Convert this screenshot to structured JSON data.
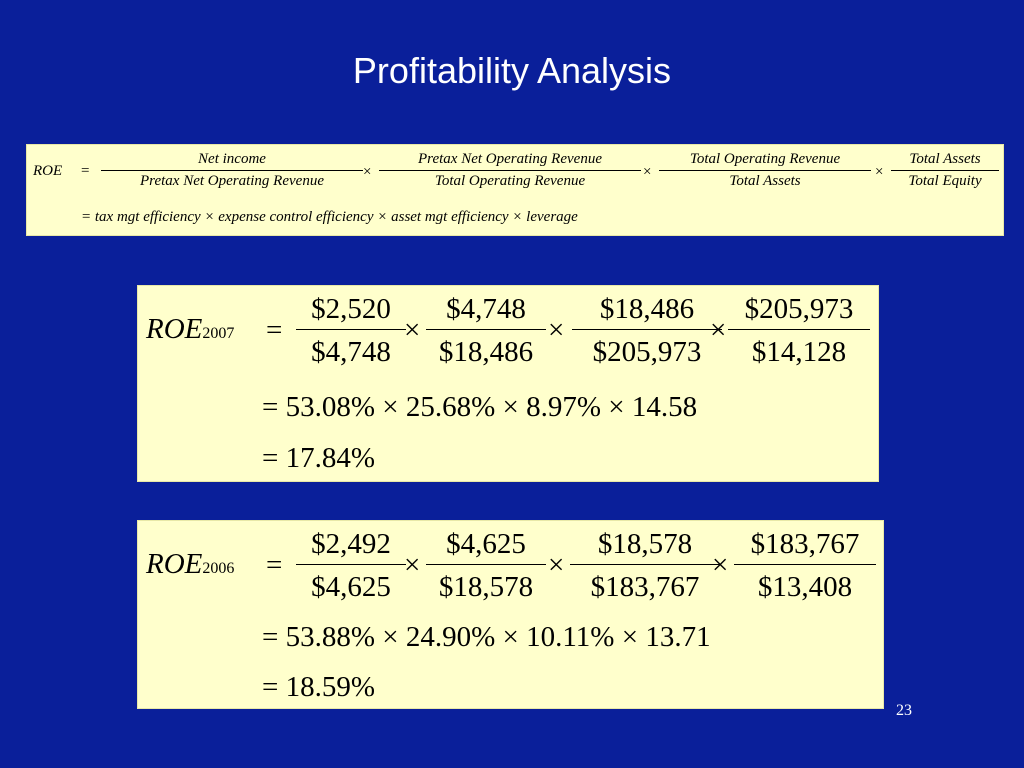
{
  "slide": {
    "title": "Profitability Analysis",
    "page_number": "23"
  },
  "formula": {
    "lhs": "ROE",
    "eq": "=",
    "times": "×",
    "fractions": [
      {
        "num": "Net income",
        "den": "Pretax Net Operating Revenue"
      },
      {
        "num": "Pretax Net Operating Revenue",
        "den": "Total Operating Revenue"
      },
      {
        "num": "Total Operating Revenue",
        "den": "Total Assets"
      },
      {
        "num": "Total Assets",
        "den": "Total Equity"
      }
    ],
    "line2": "= tax mgt efficiency × expense control efficiency × asset mgt efficiency × leverage"
  },
  "roe2007": {
    "lhs": "ROE",
    "year": "2007",
    "eq": "=",
    "times": "×",
    "fractions": [
      {
        "num": "$2,520",
        "den": "$4,748"
      },
      {
        "num": "$4,748",
        "den": "$18,486"
      },
      {
        "num": "$18,486",
        "den": "$205,973"
      },
      {
        "num": "$205,973",
        "den": "$14,128"
      }
    ],
    "line2": "= 53.08% × 25.68% × 8.97% × 14.58",
    "line3": "= 17.84%"
  },
  "roe2006": {
    "lhs": "ROE",
    "year": "2006",
    "eq": "=",
    "times": "×",
    "fractions": [
      {
        "num": "$2,492",
        "den": "$4,625"
      },
      {
        "num": "$4,625",
        "den": "$18,578"
      },
      {
        "num": "$18,578",
        "den": "$183,767"
      },
      {
        "num": "$183,767",
        "den": "$13,408"
      }
    ],
    "line2": "= 53.88% × 24.90% × 10.11% × 13.71",
    "line3": "= 18.59%"
  }
}
